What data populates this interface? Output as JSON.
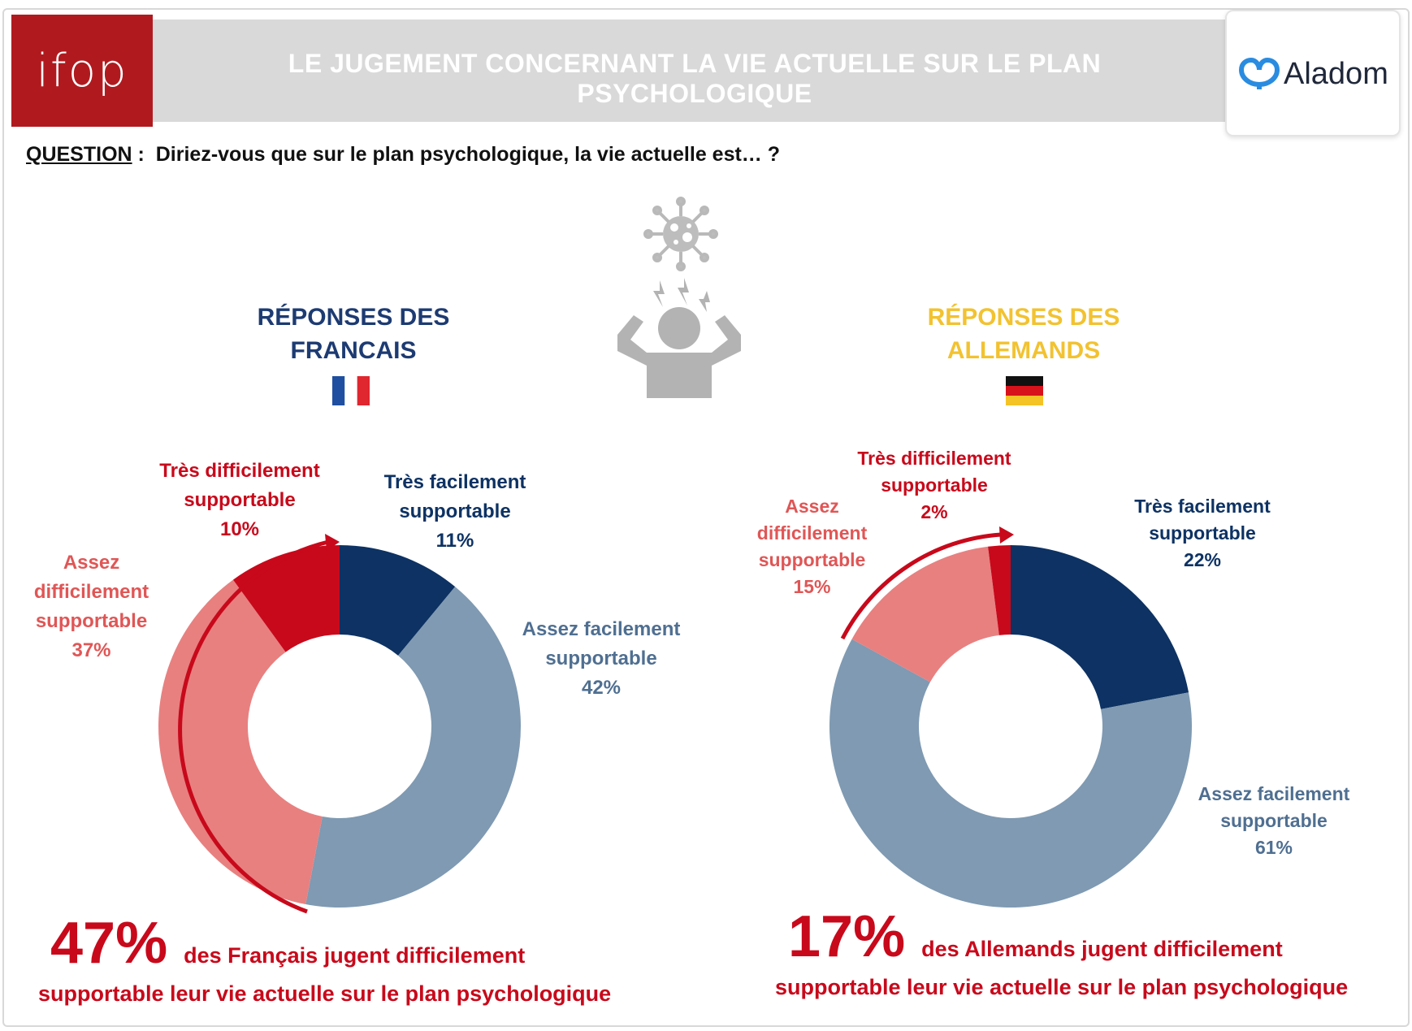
{
  "header": {
    "logo_left": "ifop",
    "title": "LE JUGEMENT CONCERNANT LA VIE ACTUELLE SUR LE PLAN PSYCHOLOGIQUE",
    "logo_right": "Aladom"
  },
  "question": {
    "label": "QUESTION",
    "separator": " :  ",
    "text": "Diriez-vous que sur le plan psychologique, la vie actuelle est… ?"
  },
  "icons": [
    "virus-icon",
    "stressed-person-icon",
    "france-flag-icon",
    "germany-flag-icon"
  ],
  "colors": {
    "tres_difficilement": "#c8091b",
    "assez_difficilement": "#e88080",
    "assez_facilement": "#7f9ab2",
    "tres_facilement": "#0d3263",
    "france_title": "#1d3b72",
    "germany_title": "#f2c230"
  },
  "france": {
    "title_line1": "RÉPONSES DES",
    "title_line2": "FRANCAIS",
    "labels": {
      "tres_difficilement": [
        "Très difficilement",
        "supportable",
        "10%"
      ],
      "tres_facilement": [
        "Très facilement",
        "supportable",
        "11%"
      ],
      "assez_facilement": [
        "Assez facilement",
        "supportable",
        "42%"
      ],
      "assez_difficilement": [
        "Assez",
        "difficilement",
        "supportable",
        "37%"
      ]
    },
    "summary_pct": "47%",
    "summary_line1": "des Français jugent difficilement",
    "summary_line2": "supportable leur vie actuelle sur le plan psychologique"
  },
  "germany": {
    "title_line1": "RÉPONSES DES",
    "title_line2": "ALLEMANDS",
    "labels": {
      "tres_difficilement": [
        "Très difficilement",
        "supportable",
        "2%"
      ],
      "assez_difficilement": [
        "Assez",
        "difficilement",
        "supportable",
        "15%"
      ],
      "tres_facilement": [
        "Très facilement",
        "supportable",
        "22%"
      ],
      "assez_facilement": [
        "Assez facilement",
        "supportable",
        "61%"
      ]
    },
    "summary_pct": "17%",
    "summary_line1": "des Allemands jugent difficilement",
    "summary_line2": "supportable leur vie actuelle sur le plan psychologique"
  },
  "chart_data": [
    {
      "type": "pie",
      "subtype": "donut",
      "title": "RÉPONSES DES FRANCAIS",
      "categories": [
        "Très facilement supportable",
        "Assez facilement supportable",
        "Assez difficilement supportable",
        "Très difficilement supportable"
      ],
      "values": [
        11,
        42,
        37,
        10
      ],
      "colors": [
        "#0d3263",
        "#7f9ab2",
        "#e88080",
        "#c8091b"
      ]
    },
    {
      "type": "pie",
      "subtype": "donut",
      "title": "RÉPONSES DES ALLEMANDS",
      "categories": [
        "Très facilement supportable",
        "Assez facilement supportable",
        "Assez difficilement supportable",
        "Très difficilement supportable"
      ],
      "values": [
        22,
        61,
        15,
        2
      ],
      "colors": [
        "#0d3263",
        "#7f9ab2",
        "#e88080",
        "#c8091b"
      ]
    }
  ]
}
